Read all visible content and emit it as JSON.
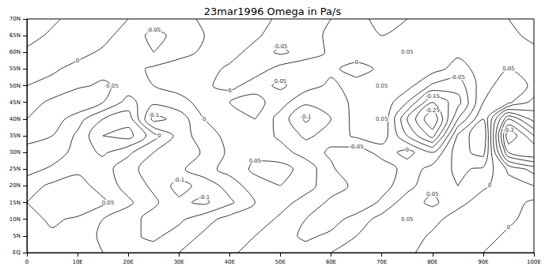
{
  "chart_data": {
    "type": "contour",
    "title": "23mar1996 Omega in Pa/s",
    "color": "#000000",
    "grid": false,
    "x": [
      0,
      5,
      10,
      15,
      20,
      25,
      30,
      35,
      40,
      45,
      50,
      55,
      60,
      65,
      70,
      75,
      80,
      85,
      90,
      95,
      100
    ],
    "y": [
      0,
      5,
      10,
      15,
      20,
      25,
      30,
      35,
      40,
      45,
      50,
      55,
      60,
      65,
      70
    ],
    "levels": [
      -0.35,
      -0.3,
      -0.25,
      -0.2,
      -0.15,
      -0.1,
      -0.05,
      0,
      0.05,
      0.1,
      0.15
    ],
    "values": [
      [
        0,
        0.02,
        0.03,
        0,
        -0.02,
        -0.03,
        0,
        0.02,
        0.01,
        -0.02,
        -0.04,
        -0.03,
        0,
        0.02,
        0.03,
        0.01,
        -0.02,
        -0.03,
        0,
        0.02,
        0.01
      ],
      [
        0.02,
        0.04,
        0.03,
        -0.01,
        -0.04,
        -0.06,
        -0.03,
        0.01,
        0.03,
        0,
        -0.03,
        -0.06,
        -0.04,
        0,
        0.04,
        0.03,
        -0.01,
        -0.04,
        -0.02,
        0.01,
        0.02
      ],
      [
        0.03,
        0.06,
        0.04,
        0,
        -0.03,
        -0.07,
        -0.06,
        -0.02,
        0.02,
        0.03,
        -0.01,
        -0.05,
        -0.07,
        -0.03,
        0.02,
        0.05,
        0.02,
        -0.03,
        -0.05,
        -0.01,
        0.02
      ],
      [
        0.05,
        0.08,
        0.1,
        0.06,
        0.01,
        -0.04,
        -0.09,
        -0.11,
        -0.06,
        0,
        0.02,
        -0.02,
        -0.06,
        -0.09,
        -0.04,
        0.03,
        0.06,
        0.02,
        -0.03,
        -0.02,
        0.01
      ],
      [
        0.03,
        0.06,
        0.07,
        0.03,
        -0.02,
        -0.06,
        -0.12,
        -0.08,
        -0.03,
        0.03,
        0.05,
        0.02,
        -0.03,
        -0.06,
        -0.07,
        -0.02,
        0.04,
        0.05,
        0.01,
        -0.03,
        -0.05
      ],
      [
        -0.02,
        0.01,
        0.04,
        0.02,
        -0.03,
        -0.08,
        -0.06,
        -0.02,
        0.02,
        0.06,
        0.07,
        0.03,
        -0.04,
        -0.1,
        -0.08,
        -0.03,
        0.02,
        0.06,
        0.04,
        -0.06,
        -0.12
      ],
      [
        -0.04,
        -0.03,
        0.02,
        0.06,
        0.01,
        -0.05,
        -0.1,
        -0.04,
        0.01,
        0.04,
        0.02,
        -0.02,
        -0.06,
        -0.08,
        -0.03,
        0.02,
        -0.05,
        0.08,
        0.12,
        -0.25,
        -0.3
      ],
      [
        -0.06,
        -0.05,
        0.01,
        0.1,
        0.12,
        0.02,
        -0.07,
        -0.03,
        0.02,
        0.03,
        -0.01,
        -0.06,
        -0.03,
        0.01,
        0.03,
        -0.1,
        -0.22,
        0.06,
        0.15,
        -0.35,
        -0.2
      ],
      [
        -0.05,
        -0.08,
        -0.02,
        0.05,
        0.08,
        -0.12,
        -0.08,
        0,
        0.04,
        0.05,
        -0.02,
        -0.11,
        -0.05,
        0.02,
        0.05,
        -0.15,
        -0.3,
        -0.05,
        0.1,
        -0.2,
        -0.08
      ],
      [
        -0.03,
        -0.06,
        -0.1,
        -0.05,
        0.02,
        -0.04,
        -0.02,
        0.02,
        0.05,
        0.07,
        0.02,
        -0.04,
        -0.02,
        0.01,
        0.04,
        -0.05,
        -0.2,
        -0.12,
        0.05,
        0.06,
        -0.02
      ],
      [
        0,
        -0.02,
        -0.04,
        -0.06,
        -0.03,
        0,
        0.02,
        0.01,
        -0.02,
        0.03,
        0.06,
        0.02,
        -0.01,
        0.02,
        0.05,
        0.02,
        -0.06,
        -0.08,
        0.03,
        0.08,
        0.04
      ],
      [
        0.02,
        0.01,
        -0.02,
        -0.03,
        -0.02,
        0.01,
        0.03,
        0.02,
        -0.01,
        -0.03,
        0.02,
        0.04,
        0.01,
        -0.02,
        0.01,
        0.04,
        0.02,
        -0.02,
        0.02,
        0.05,
        0.03
      ],
      [
        0.01,
        0.03,
        0.02,
        -0.01,
        -0.04,
        -0.05,
        -0.02,
        0.01,
        0.02,
        -0.02,
        -0.06,
        -0.03,
        0.01,
        0.03,
        0.02,
        0.05,
        0.03,
        0.01,
        0.04,
        0.03,
        0.01
      ],
      [
        -0.02,
        0.01,
        0.04,
        0.02,
        -0.03,
        -0.06,
        -0.04,
        0,
        0.03,
        0.01,
        -0.03,
        -0.02,
        0.01,
        0.02,
        0,
        0.02,
        0.04,
        0.02,
        0.03,
        0.01,
        -0.01
      ],
      [
        -0.03,
        -0.01,
        0.02,
        0.03,
        0,
        -0.03,
        -0.02,
        0.01,
        0.02,
        0.02,
        -0.01,
        -0.02,
        0,
        0.01,
        -0.01,
        0,
        0.02,
        0.01,
        0.02,
        0,
        -0.02
      ]
    ],
    "xlim": [
      0,
      100
    ],
    "ylim": [
      0,
      70
    ],
    "xticks": [
      {
        "value": 0,
        "label": "0"
      },
      {
        "value": 10,
        "label": "10E"
      },
      {
        "value": 20,
        "label": "20E"
      },
      {
        "value": 30,
        "label": "30E"
      },
      {
        "value": 40,
        "label": "40E"
      },
      {
        "value": 50,
        "label": "50E"
      },
      {
        "value": 60,
        "label": "60E"
      },
      {
        "value": 70,
        "label": "70E"
      },
      {
        "value": 80,
        "label": "80E"
      },
      {
        "value": 90,
        "label": "90E"
      },
      {
        "value": 100,
        "label": "100E"
      }
    ],
    "yticks": [
      {
        "value": 0,
        "label": "EQ"
      },
      {
        "value": 5,
        "label": "5N"
      },
      {
        "value": 10,
        "label": "10N"
      },
      {
        "value": 15,
        "label": "15N"
      },
      {
        "value": 20,
        "label": "20N"
      },
      {
        "value": 25,
        "label": "25N"
      },
      {
        "value": 30,
        "label": "30N"
      },
      {
        "value": 35,
        "label": "35N"
      },
      {
        "value": 40,
        "label": "40N"
      },
      {
        "value": 45,
        "label": "45N"
      },
      {
        "value": 50,
        "label": "50N"
      },
      {
        "value": 55,
        "label": "55N"
      },
      {
        "value": 60,
        "label": "60N"
      },
      {
        "value": 65,
        "label": "65N"
      },
      {
        "value": 70,
        "label": "70N"
      }
    ]
  }
}
